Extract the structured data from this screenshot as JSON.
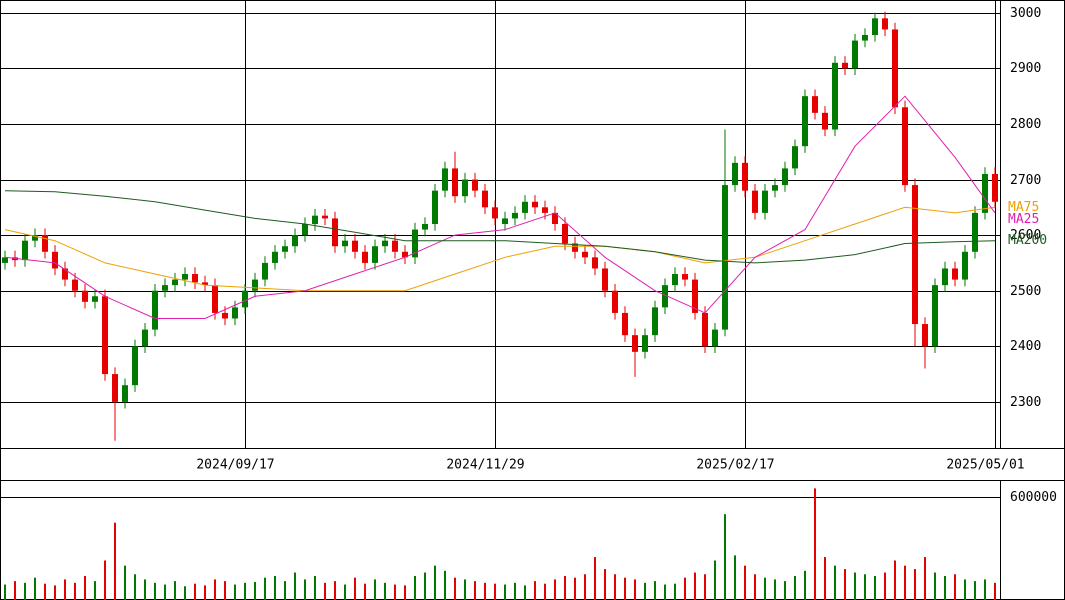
{
  "chart_data": [
    {
      "type": "candlestick",
      "categories": [
        null,
        null,
        null,
        null,
        null,
        null,
        null,
        null,
        null,
        null,
        null,
        null,
        null,
        null,
        null,
        null,
        null,
        null,
        null,
        null,
        null,
        null,
        null,
        null,
        "2024/09/17",
        null,
        null,
        null,
        null,
        null,
        null,
        null,
        null,
        null,
        null,
        null,
        null,
        null,
        null,
        null,
        null,
        null,
        null,
        null,
        null,
        null,
        null,
        null,
        null,
        "2024/11/29",
        null,
        null,
        null,
        null,
        null,
        null,
        null,
        null,
        null,
        null,
        null,
        null,
        null,
        null,
        null,
        null,
        null,
        null,
        null,
        null,
        null,
        null,
        null,
        null,
        "2025/02/17",
        null,
        null,
        null,
        null,
        null,
        null,
        null,
        null,
        null,
        null,
        null,
        null,
        null,
        null,
        null,
        null,
        null,
        null,
        null,
        null,
        null,
        null,
        null,
        null,
        "2025/05/01"
      ],
      "open": [
        2550,
        2560,
        2555,
        2590,
        2600,
        2570,
        2540,
        2520,
        2500,
        2480,
        2490,
        2350,
        2300,
        2330,
        2400,
        2430,
        2500,
        2510,
        2520,
        2530,
        2515,
        2510,
        2460,
        2450,
        2470,
        2500,
        2520,
        2550,
        2570,
        2580,
        2600,
        2620,
        2635,
        2630,
        2580,
        2590,
        2570,
        2550,
        2580,
        2590,
        2570,
        2560,
        2610,
        2620,
        2680,
        2720,
        2670,
        2700,
        2680,
        2650,
        2620,
        2630,
        2640,
        2660,
        2650,
        2640,
        2620,
        2585,
        2570,
        2560,
        2540,
        2500,
        2460,
        2420,
        2390,
        2420,
        2470,
        2510,
        2530,
        2520,
        2460,
        2400,
        2430,
        2690,
        2730,
        2680,
        2640,
        2680,
        2690,
        2720,
        2760,
        2850,
        2820,
        2790,
        2910,
        2900,
        2950,
        2960,
        2990,
        2970,
        2830,
        2690,
        2440,
        2400,
        2510,
        2540,
        2520,
        2570,
        2640,
        2710
      ],
      "high": [
        2572,
        2572,
        2602,
        2612,
        2612,
        2582,
        2552,
        2532,
        2512,
        2502,
        2502,
        2362,
        2342,
        2412,
        2442,
        2512,
        2522,
        2532,
        2542,
        2542,
        2527,
        2522,
        2472,
        2482,
        2512,
        2532,
        2562,
        2582,
        2592,
        2612,
        2632,
        2647,
        2647,
        2642,
        2602,
        2602,
        2582,
        2592,
        2602,
        2602,
        2582,
        2622,
        2632,
        2692,
        2732,
        2750,
        2712,
        2712,
        2692,
        2662,
        2642,
        2652,
        2672,
        2672,
        2662,
        2652,
        2632,
        2597,
        2582,
        2572,
        2552,
        2512,
        2472,
        2432,
        2432,
        2482,
        2522,
        2542,
        2542,
        2532,
        2472,
        2442,
        2790,
        2742,
        2742,
        2692,
        2692,
        2702,
        2732,
        2772,
        2862,
        2862,
        2832,
        2922,
        2922,
        2962,
        2972,
        3000,
        3002,
        2982,
        2842,
        2702,
        2452,
        2522,
        2552,
        2552,
        2582,
        2652,
        2722,
        2722
      ],
      "low": [
        2538,
        2543,
        2543,
        2578,
        2558,
        2528,
        2508,
        2488,
        2468,
        2468,
        2338,
        2230,
        2288,
        2318,
        2388,
        2418,
        2488,
        2498,
        2508,
        2503,
        2498,
        2448,
        2438,
        2438,
        2458,
        2488,
        2508,
        2538,
        2558,
        2568,
        2588,
        2608,
        2618,
        2568,
        2568,
        2558,
        2538,
        2538,
        2568,
        2558,
        2548,
        2548,
        2598,
        2608,
        2668,
        2658,
        2658,
        2668,
        2638,
        2618,
        2608,
        2618,
        2628,
        2638,
        2628,
        2608,
        2573,
        2558,
        2548,
        2528,
        2488,
        2448,
        2408,
        2345,
        2378,
        2408,
        2458,
        2498,
        2508,
        2448,
        2388,
        2388,
        2418,
        2678,
        2668,
        2628,
        2628,
        2668,
        2678,
        2708,
        2748,
        2808,
        2778,
        2778,
        2888,
        2888,
        2938,
        2948,
        2958,
        2818,
        2678,
        2400,
        2360,
        2388,
        2498,
        2508,
        2508,
        2558,
        2628,
        2648
      ],
      "close": [
        2560,
        2555,
        2590,
        2600,
        2570,
        2540,
        2520,
        2500,
        2480,
        2490,
        2350,
        2300,
        2330,
        2400,
        2430,
        2500,
        2510,
        2520,
        2530,
        2515,
        2510,
        2460,
        2450,
        2470,
        2500,
        2520,
        2550,
        2570,
        2580,
        2600,
        2620,
        2635,
        2630,
        2580,
        2590,
        2570,
        2550,
        2580,
        2590,
        2570,
        2560,
        2610,
        2620,
        2680,
        2720,
        2670,
        2700,
        2680,
        2650,
        2630,
        2630,
        2640,
        2660,
        2650,
        2640,
        2620,
        2585,
        2570,
        2560,
        2540,
        2500,
        2460,
        2420,
        2390,
        2420,
        2470,
        2510,
        2530,
        2520,
        2460,
        2400,
        2430,
        2690,
        2730,
        2680,
        2640,
        2680,
        2690,
        2720,
        2760,
        2850,
        2820,
        2790,
        2910,
        2900,
        2950,
        2960,
        2990,
        2970,
        2830,
        2690,
        2440,
        2400,
        2510,
        2540,
        2520,
        2570,
        2640,
        2710,
        2660
      ],
      "up_color": "#007a00",
      "down_color": "#e60000",
      "ylim": [
        2217,
        3023
      ],
      "yticks": [
        2300,
        2400,
        2500,
        2600,
        2700,
        2800,
        2900,
        3000
      ],
      "grid": true,
      "lines": [
        {
          "name": "MA75",
          "color": "#f0a000",
          "x": [
            0,
            5,
            10,
            15,
            20,
            25,
            30,
            35,
            40,
            45,
            50,
            55,
            60,
            65,
            70,
            75,
            80,
            85,
            90,
            95,
            99
          ],
          "values": [
            2610,
            2590,
            2550,
            2530,
            2510,
            2505,
            2500,
            2500,
            2500,
            2530,
            2560,
            2580,
            2580,
            2570,
            2550,
            2560,
            2590,
            2620,
            2650,
            2640,
            2650
          ]
        },
        {
          "name": "MA25",
          "color": "#e020b0",
          "x": [
            0,
            5,
            10,
            15,
            20,
            25,
            30,
            35,
            40,
            45,
            50,
            55,
            60,
            65,
            70,
            75,
            80,
            85,
            90,
            95,
            99
          ],
          "values": [
            2560,
            2550,
            2490,
            2450,
            2450,
            2490,
            2500,
            2530,
            2560,
            2600,
            2610,
            2640,
            2560,
            2500,
            2460,
            2560,
            2610,
            2760,
            2850,
            2740,
            2640
          ]
        },
        {
          "name": "MA200",
          "color": "#1f5a1f",
          "x": [
            0,
            5,
            10,
            15,
            20,
            25,
            30,
            35,
            40,
            45,
            50,
            55,
            60,
            65,
            70,
            75,
            80,
            85,
            90,
            95,
            99
          ],
          "values": [
            2680,
            2678,
            2670,
            2660,
            2645,
            2630,
            2620,
            2605,
            2590,
            2590,
            2590,
            2585,
            2580,
            2570,
            2555,
            2550,
            2555,
            2565,
            2585,
            2588,
            2590
          ]
        }
      ]
    },
    {
      "type": "bar",
      "values": [
        90000,
        110000,
        100000,
        130000,
        95000,
        85000,
        120000,
        100000,
        140000,
        110000,
        230000,
        450000,
        200000,
        150000,
        120000,
        100000,
        90000,
        110000,
        80000,
        95000,
        85000,
        120000,
        110000,
        90000,
        100000,
        105000,
        130000,
        140000,
        110000,
        160000,
        120000,
        140000,
        100000,
        110000,
        90000,
        130000,
        95000,
        120000,
        100000,
        90000,
        85000,
        140000,
        160000,
        200000,
        170000,
        130000,
        120000,
        110000,
        100000,
        95000,
        90000,
        100000,
        85000,
        110000,
        95000,
        120000,
        140000,
        130000,
        150000,
        250000,
        180000,
        150000,
        130000,
        120000,
        100000,
        110000,
        90000,
        95000,
        130000,
        160000,
        150000,
        230000,
        500000,
        260000,
        200000,
        150000,
        130000,
        120000,
        110000,
        140000,
        170000,
        650000,
        250000,
        200000,
        180000,
        160000,
        150000,
        140000,
        160000,
        230000,
        200000,
        180000,
        250000,
        160000,
        140000,
        150000,
        120000,
        110000,
        120000,
        100000
      ],
      "ylim": [
        0,
        699000
      ],
      "yticks": [
        600000
      ],
      "grid": true
    }
  ]
}
